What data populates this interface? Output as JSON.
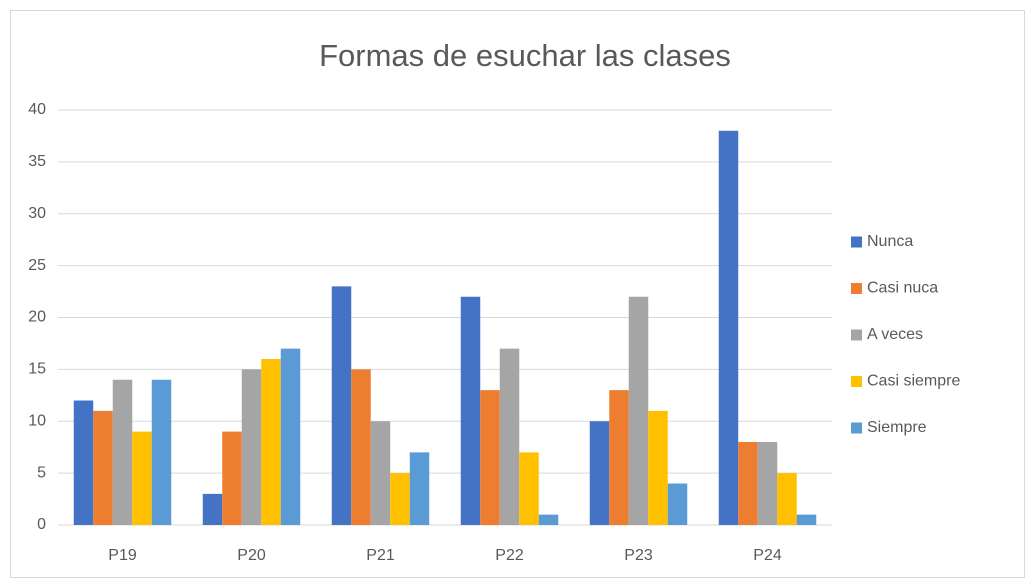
{
  "chart_data": {
    "type": "bar",
    "title": "Formas de esuchar las clases",
    "categories": [
      "P19",
      "P20",
      "P21",
      "P22",
      "P23",
      "P24"
    ],
    "series": [
      {
        "name": "Nunca",
        "color": "#4472c4",
        "values": [
          12,
          3,
          23,
          22,
          10,
          38
        ]
      },
      {
        "name": "Casi nuca",
        "color": "#ed7d31",
        "values": [
          11,
          9,
          15,
          13,
          13,
          8
        ]
      },
      {
        "name": "A veces",
        "color": "#a5a5a5",
        "values": [
          14,
          15,
          10,
          17,
          22,
          8
        ]
      },
      {
        "name": "Casi siempre",
        "color": "#ffc000",
        "values": [
          9,
          16,
          5,
          7,
          11,
          5
        ]
      },
      {
        "name": "Siempre",
        "color": "#5b9bd5",
        "values": [
          14,
          17,
          7,
          1,
          4,
          1
        ]
      }
    ],
    "ylim": [
      0,
      40
    ],
    "yticks": [
      0,
      5,
      10,
      15,
      20,
      25,
      30,
      35,
      40
    ],
    "grid": true,
    "legend": "right"
  }
}
